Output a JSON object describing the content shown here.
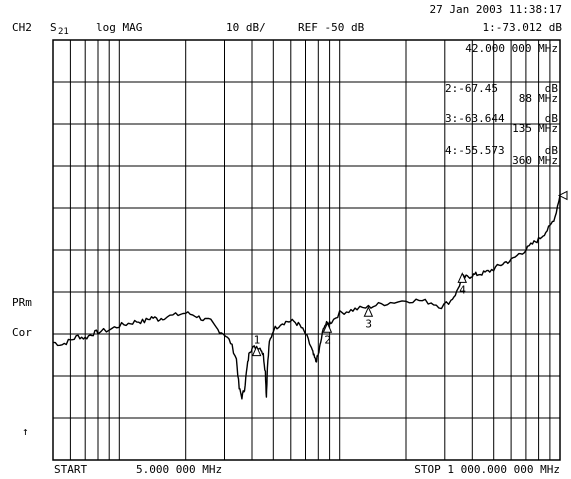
{
  "header": {
    "datetime": "27 Jan 2003  11:38:17",
    "channel": "CH2",
    "param_main": "S",
    "param_sub": "21",
    "format": "log MAG",
    "scale": "10 dB/",
    "ref": "REF -50 dB",
    "active_marker": "1:-73.012 dB"
  },
  "marker_table": {
    "marker1_freq": "42.000 000 MHz",
    "entries": [
      {
        "label": "2:-67.45",
        "unit1": "dB",
        "freq": "88",
        "unit2": "MHz"
      },
      {
        "label": "3:-63.644",
        "unit1": "dB",
        "freq": "135",
        "unit2": "MHz"
      },
      {
        "label": "4:-55.573",
        "unit1": "dB",
        "freq": "360",
        "unit2": "MHz"
      }
    ]
  },
  "side_labels": {
    "prm": "PRm",
    "cor": "Cor",
    "arrow": "↑"
  },
  "footer": {
    "start": "START",
    "start_value": "5.000 000 MHz",
    "stop": "STOP 1 000.000 000 MHz"
  },
  "chart_data": {
    "type": "line",
    "x_scale": "log",
    "x_unit": "MHz",
    "xlim": [
      5,
      1000
    ],
    "y_unit": "dB",
    "ylim": [
      -100,
      0
    ],
    "y_divisions": 10,
    "grid": true,
    "x_gridlines": [
      6,
      7,
      8,
      9,
      10,
      20,
      30,
      40,
      50,
      60,
      70,
      80,
      90,
      100,
      200,
      300,
      400,
      500,
      600,
      700,
      800,
      900
    ],
    "trace": [
      {
        "x": 5.0,
        "y": -72.0
      },
      {
        "x": 5.5,
        "y": -72.5
      },
      {
        "x": 6.0,
        "y": -71.5
      },
      {
        "x": 6.5,
        "y": -70.5
      },
      {
        "x": 7.0,
        "y": -71.0
      },
      {
        "x": 7.5,
        "y": -70.0
      },
      {
        "x": 8.0,
        "y": -69.5
      },
      {
        "x": 9.0,
        "y": -69.0
      },
      {
        "x": 10.0,
        "y": -68.0
      },
      {
        "x": 11.0,
        "y": -67.5
      },
      {
        "x": 12.0,
        "y": -67.0
      },
      {
        "x": 13.0,
        "y": -67.0
      },
      {
        "x": 14.0,
        "y": -66.0
      },
      {
        "x": 15.0,
        "y": -66.5
      },
      {
        "x": 16.0,
        "y": -66.0
      },
      {
        "x": 18.0,
        "y": -65.5
      },
      {
        "x": 20.0,
        "y": -65.0
      },
      {
        "x": 22.0,
        "y": -65.5
      },
      {
        "x": 24.0,
        "y": -66.5
      },
      {
        "x": 26.0,
        "y": -67.0
      },
      {
        "x": 28.0,
        "y": -69.0
      },
      {
        "x": 30.0,
        "y": -70.0
      },
      {
        "x": 32.0,
        "y": -72.0
      },
      {
        "x": 34.0,
        "y": -76.0
      },
      {
        "x": 35.0,
        "y": -83.0
      },
      {
        "x": 36.0,
        "y": -85.0
      },
      {
        "x": 37.0,
        "y": -83.0
      },
      {
        "x": 38.0,
        "y": -78.0
      },
      {
        "x": 39.0,
        "y": -74.0
      },
      {
        "x": 40.0,
        "y": -73.5
      },
      {
        "x": 42.0,
        "y": -73.0
      },
      {
        "x": 44.0,
        "y": -73.5
      },
      {
        "x": 45.0,
        "y": -75.0
      },
      {
        "x": 46.0,
        "y": -79.0
      },
      {
        "x": 46.5,
        "y": -85.0
      },
      {
        "x": 47.0,
        "y": -78.0
      },
      {
        "x": 48.0,
        "y": -72.0
      },
      {
        "x": 50.0,
        "y": -69.0
      },
      {
        "x": 54.0,
        "y": -67.5
      },
      {
        "x": 58.0,
        "y": -67.0
      },
      {
        "x": 62.0,
        "y": -67.0
      },
      {
        "x": 66.0,
        "y": -68.0
      },
      {
        "x": 70.0,
        "y": -70.0
      },
      {
        "x": 74.0,
        "y": -73.0
      },
      {
        "x": 76.0,
        "y": -75.0
      },
      {
        "x": 78.0,
        "y": -76.5
      },
      {
        "x": 80.0,
        "y": -75.0
      },
      {
        "x": 82.0,
        "y": -72.0
      },
      {
        "x": 85.0,
        "y": -68.0
      },
      {
        "x": 88.0,
        "y": -67.5
      },
      {
        "x": 92.0,
        "y": -67.0
      },
      {
        "x": 100.0,
        "y": -65.0
      },
      {
        "x": 110.0,
        "y": -64.5
      },
      {
        "x": 120.0,
        "y": -64.0
      },
      {
        "x": 135.0,
        "y": -63.6
      },
      {
        "x": 150.0,
        "y": -63.0
      },
      {
        "x": 170.0,
        "y": -62.5
      },
      {
        "x": 200.0,
        "y": -62.0
      },
      {
        "x": 230.0,
        "y": -62.0
      },
      {
        "x": 260.0,
        "y": -62.5
      },
      {
        "x": 290.0,
        "y": -63.5
      },
      {
        "x": 320.0,
        "y": -62.0
      },
      {
        "x": 340.0,
        "y": -60.0
      },
      {
        "x": 360.0,
        "y": -56.5
      },
      {
        "x": 380.0,
        "y": -56.5
      },
      {
        "x": 400.0,
        "y": -56.0
      },
      {
        "x": 420.0,
        "y": -55.8
      },
      {
        "x": 450.0,
        "y": -55.5
      },
      {
        "x": 480.0,
        "y": -55.0
      },
      {
        "x": 520.0,
        "y": -54.0
      },
      {
        "x": 560.0,
        "y": -53.0
      },
      {
        "x": 600.0,
        "y": -52.5
      },
      {
        "x": 650.0,
        "y": -51.0
      },
      {
        "x": 700.0,
        "y": -50.0
      },
      {
        "x": 750.0,
        "y": -48.5
      },
      {
        "x": 800.0,
        "y": -47.5
      },
      {
        "x": 850.0,
        "y": -46.0
      },
      {
        "x": 900.0,
        "y": -44.5
      },
      {
        "x": 950.0,
        "y": -42.0
      },
      {
        "x": 1000.0,
        "y": -37.0
      }
    ],
    "markers": [
      {
        "label": "1",
        "x": 42,
        "y": -73.0,
        "label_pos": "above"
      },
      {
        "label": "2",
        "x": 88,
        "y": -67.45,
        "label_pos": "below"
      },
      {
        "label": "3",
        "x": 135,
        "y": -63.644,
        "label_pos": "below"
      },
      {
        "label": "4",
        "x": 360,
        "y": -55.573,
        "label_pos": "below"
      }
    ]
  }
}
